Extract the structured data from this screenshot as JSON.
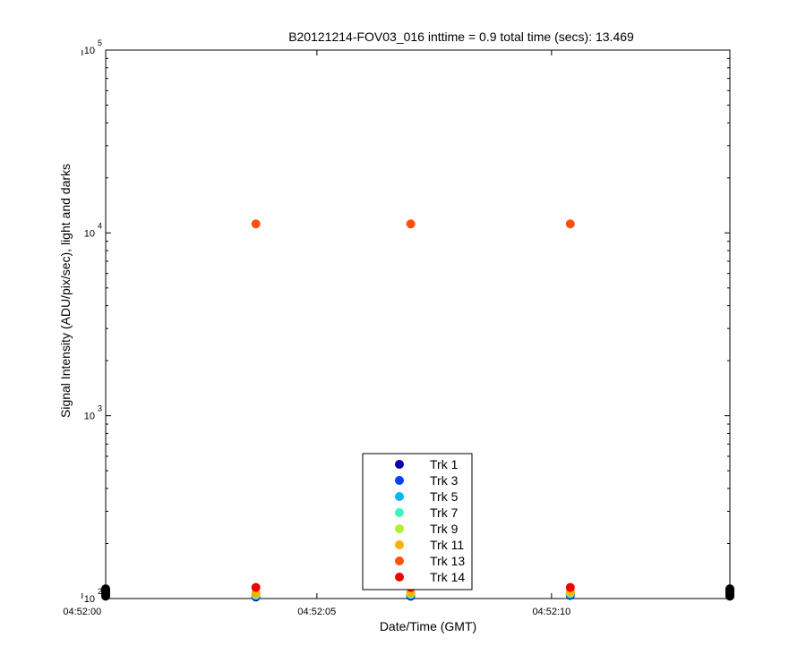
{
  "chart_data": {
    "type": "scatter",
    "title": "B20121214-FOV03_016 inttime = 0.9 total time (secs): 13.469",
    "xlabel": "Date/Time (GMT)",
    "ylabel": "Signal Intensity (ADU/pix/sec), light and darks",
    "yscale": "log",
    "ylim": [
      100,
      100000
    ],
    "xlim": [
      "04:52:00.5",
      "04:52:13.8"
    ],
    "x_ticks": [
      "04:52:00",
      "04:52:05",
      "04:52:10"
    ],
    "y_ticks": [
      {
        "base": "10",
        "exp": "2"
      },
      {
        "base": "10",
        "exp": "3"
      },
      {
        "base": "10",
        "exp": "4"
      },
      {
        "base": "10",
        "exp": "5"
      }
    ],
    "legend_position": "bottom-center",
    "series": [
      {
        "name": "Trk 1",
        "color": "#0000a8",
        "x": [
          "04:52:03.7",
          "04:52:07.0",
          "04:52:10.4"
        ],
        "y": [
          102,
          103,
          104
        ]
      },
      {
        "name": "Trk 3",
        "color": "#0040ff",
        "x": [
          "04:52:03.7",
          "04:52:07.0",
          "04:52:10.4"
        ],
        "y": [
          103,
          104,
          105
        ]
      },
      {
        "name": "Trk 5",
        "color": "#00b8f0",
        "x": [
          "04:52:03.7",
          "04:52:07.0",
          "04:52:10.4"
        ],
        "y": [
          104,
          105,
          106
        ]
      },
      {
        "name": "Trk 7",
        "color": "#40f0c0",
        "x": [
          "04:52:03.7",
          "04:52:07.0",
          "04:52:10.4"
        ],
        "y": [
          105,
          106,
          107
        ]
      },
      {
        "name": "Trk 9",
        "color": "#b0f030",
        "x": [
          "04:52:03.7",
          "04:52:07.0",
          "04:52:10.4"
        ],
        "y": [
          106,
          107,
          108
        ]
      },
      {
        "name": "Trk 11",
        "color": "#ffb000",
        "x": [
          "04:52:03.7",
          "04:52:07.0",
          "04:52:10.4"
        ],
        "y": [
          107,
          108,
          109
        ]
      },
      {
        "name": "Trk 13",
        "color": "#ff5010",
        "x": [
          "04:52:03.7",
          "04:52:07.0",
          "04:52:10.4"
        ],
        "y": [
          11200,
          11200,
          11200
        ]
      },
      {
        "name": "Trk 14",
        "color": "#f00000",
        "x": [
          "04:52:03.7",
          "04:52:07.0",
          "04:52:10.4"
        ],
        "y": [
          115,
          115,
          115
        ]
      },
      {
        "name": "",
        "color": "#000000",
        "x": [
          "04:52:00.5",
          "04:52:00.5",
          "04:52:00.5",
          "04:52:00.5",
          "04:52:00.5",
          "04:52:00.5",
          "04:52:13.8",
          "04:52:13.8",
          "04:52:13.8",
          "04:52:13.8",
          "04:52:13.8",
          "04:52:13.8"
        ],
        "y": [
          103,
          105,
          107,
          109,
          111,
          113,
          103,
          105,
          107,
          109,
          111,
          113
        ]
      }
    ]
  }
}
